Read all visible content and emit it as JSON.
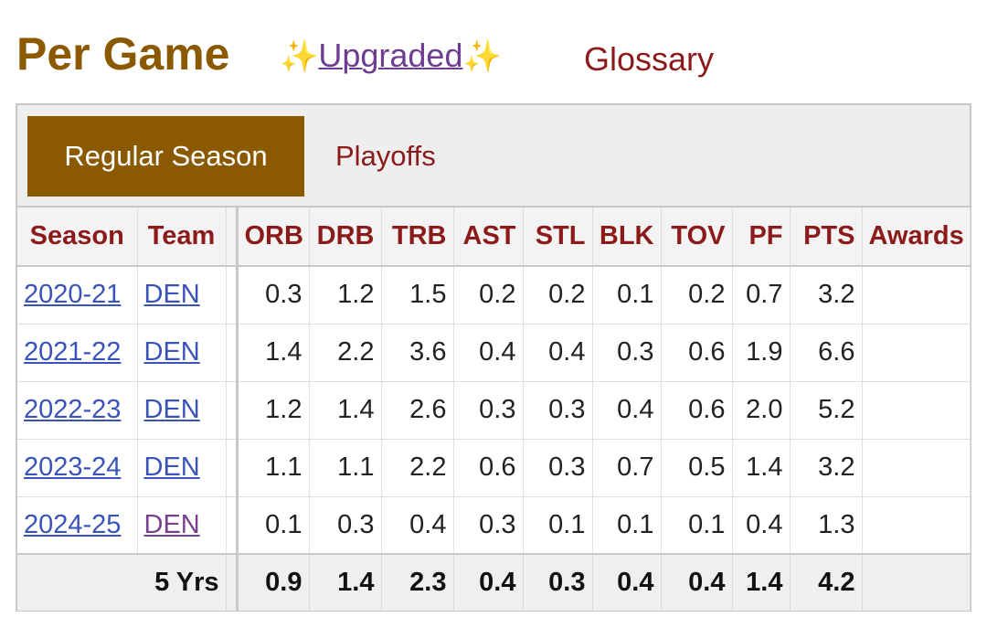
{
  "header": {
    "title": "Per Game",
    "upgraded_prefix": "✨",
    "upgraded_label": "Upgraded",
    "upgraded_suffix": "✨",
    "glossary_label": "Glossary"
  },
  "tabs": {
    "regular_season": "Regular Season",
    "playoffs": "Playoffs"
  },
  "table": {
    "columns": [
      "Season",
      "Team",
      "ORB",
      "DRB",
      "TRB",
      "AST",
      "STL",
      "BLK",
      "TOV",
      "PF",
      "PTS",
      "Awards"
    ],
    "rows": [
      {
        "season": "2020-21",
        "team": "DEN",
        "orb": "0.3",
        "drb": "1.2",
        "trb": "1.5",
        "ast": "0.2",
        "stl": "0.2",
        "blk": "0.1",
        "tov": "0.2",
        "pf": "0.7",
        "pts": "3.2",
        "awards": ""
      },
      {
        "season": "2021-22",
        "team": "DEN",
        "orb": "1.4",
        "drb": "2.2",
        "trb": "3.6",
        "ast": "0.4",
        "stl": "0.4",
        "blk": "0.3",
        "tov": "0.6",
        "pf": "1.9",
        "pts": "6.6",
        "awards": ""
      },
      {
        "season": "2022-23",
        "team": "DEN",
        "orb": "1.2",
        "drb": "1.4",
        "trb": "2.6",
        "ast": "0.3",
        "stl": "0.3",
        "blk": "0.4",
        "tov": "0.6",
        "pf": "2.0",
        "pts": "5.2",
        "awards": ""
      },
      {
        "season": "2023-24",
        "team": "DEN",
        "orb": "1.1",
        "drb": "1.1",
        "trb": "2.2",
        "ast": "0.6",
        "stl": "0.3",
        "blk": "0.7",
        "tov": "0.5",
        "pf": "1.4",
        "pts": "3.2",
        "awards": ""
      },
      {
        "season": "2024-25",
        "team": "DEN",
        "orb": "0.1",
        "drb": "0.3",
        "trb": "0.4",
        "ast": "0.3",
        "stl": "0.1",
        "blk": "0.1",
        "tov": "0.1",
        "pf": "0.4",
        "pts": "1.3",
        "awards": ""
      }
    ],
    "footer": {
      "label": "5 Yrs",
      "orb": "0.9",
      "drb": "1.4",
      "trb": "2.3",
      "ast": "0.4",
      "stl": "0.3",
      "blk": "0.4",
      "tov": "0.4",
      "pf": "1.4",
      "pts": "4.2",
      "awards": ""
    }
  },
  "colors": {
    "brand_gold": "#8b5a00",
    "link_red": "#8b1a1a",
    "link_blue": "#3a53b8",
    "link_visited": "#7a3f8f"
  }
}
